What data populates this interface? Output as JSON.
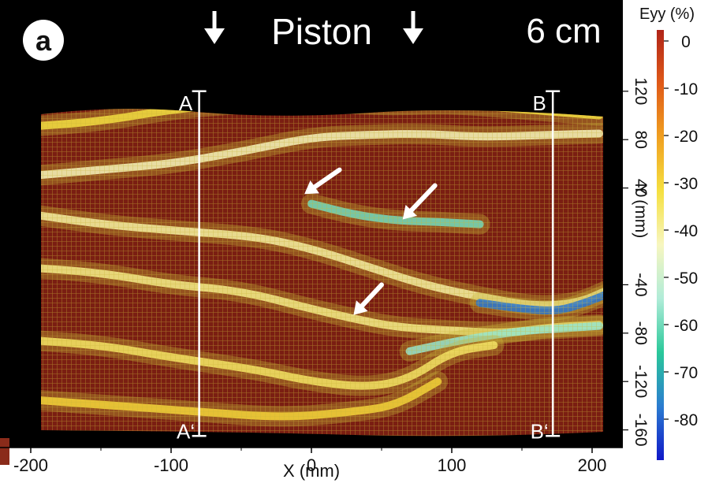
{
  "chart_data": {
    "type": "heatmap",
    "panel_label": "a",
    "header": {
      "piston_label": "Piston",
      "displacement_label": "6 cm"
    },
    "xlabel": "X (mm)",
    "ylabel": "Y (mm)",
    "xlim": [
      -210,
      210
    ],
    "ylim": [
      -170,
      135
    ],
    "x_ticks": [
      "-200",
      "-100",
      "0",
      "100",
      "200"
    ],
    "y_ticks": [
      "120",
      "80",
      "40",
      "-40",
      "-80",
      "-120",
      "-160"
    ],
    "colorbar": {
      "title": "Eyy (%)",
      "min": -85,
      "max": 0,
      "ticks": [
        "0",
        "-10",
        "-20",
        "-30",
        "-40",
        "-50",
        "-60",
        "-70",
        "-80"
      ],
      "colors": [
        "#b02418",
        "#e05a18",
        "#f0a020",
        "#f5e040",
        "#f7f6c0",
        "#b0ecd8",
        "#2ac89a",
        "#2b7cd0",
        "#1018c8"
      ]
    },
    "profiles": [
      {
        "start_label": "A",
        "end_label": "A‘",
        "x": -80,
        "y_top": 120,
        "y_bottom": -165
      },
      {
        "start_label": "B",
        "end_label": "B‘",
        "x": 172,
        "y_top": 120,
        "y_bottom": -165
      }
    ],
    "shear_bands": [
      {
        "strain": -42,
        "points": [
          [
            -200,
            50
          ],
          [
            -150,
            55
          ],
          [
            -100,
            60
          ],
          [
            -50,
            70
          ],
          [
            0,
            82
          ],
          [
            40,
            84
          ],
          [
            80,
            85
          ],
          [
            120,
            82
          ],
          [
            170,
            84
          ],
          [
            205,
            85
          ]
        ]
      },
      {
        "strain": -58,
        "points": [
          [
            0,
            27
          ],
          [
            30,
            18
          ],
          [
            60,
            13
          ],
          [
            90,
            12
          ],
          [
            120,
            10
          ]
        ]
      },
      {
        "strain": -40,
        "points": [
          [
            -210,
            20
          ],
          [
            -150,
            10
          ],
          [
            -100,
            5
          ],
          [
            -40,
            0
          ],
          [
            0,
            -10
          ],
          [
            40,
            -25
          ],
          [
            80,
            -40
          ],
          [
            120,
            -50
          ],
          [
            160,
            -58
          ],
          [
            190,
            -55
          ],
          [
            210,
            -45
          ]
        ]
      },
      {
        "strain": -75,
        "points": [
          [
            120,
            -55
          ],
          [
            150,
            -60
          ],
          [
            175,
            -62
          ],
          [
            195,
            -55
          ],
          [
            210,
            -48
          ]
        ]
      },
      {
        "strain": -38,
        "points": [
          [
            -210,
            -25
          ],
          [
            -150,
            -30
          ],
          [
            -100,
            -40
          ],
          [
            -50,
            -45
          ],
          [
            0,
            -60
          ],
          [
            30,
            -68
          ],
          [
            60,
            -75
          ],
          [
            100,
            -78
          ],
          [
            140,
            -80
          ],
          [
            170,
            -75
          ],
          [
            205,
            -73
          ]
        ]
      },
      {
        "strain": -55,
        "points": [
          [
            70,
            -95
          ],
          [
            110,
            -85
          ],
          [
            150,
            -78
          ],
          [
            180,
            -76
          ],
          [
            205,
            -74
          ]
        ]
      },
      {
        "strain": -35,
        "points": [
          [
            -210,
            -85
          ],
          [
            -150,
            -90
          ],
          [
            -100,
            -100
          ],
          [
            -40,
            -110
          ],
          [
            0,
            -120
          ],
          [
            40,
            -125
          ],
          [
            70,
            -118
          ],
          [
            100,
            -95
          ],
          [
            130,
            -90
          ]
        ]
      },
      {
        "strain": -30,
        "points": [
          [
            -200,
            -135
          ],
          [
            -140,
            -140
          ],
          [
            -80,
            -145
          ],
          [
            -20,
            -150
          ],
          [
            30,
            -145
          ],
          [
            60,
            -140
          ],
          [
            90,
            -120
          ]
        ]
      },
      {
        "strain": -32,
        "points": [
          [
            -210,
            90
          ],
          [
            -150,
            95
          ],
          [
            -100,
            105
          ],
          [
            -50,
            110
          ],
          [
            0,
            112
          ],
          [
            50,
            108
          ],
          [
            100,
            110
          ],
          [
            150,
            105
          ],
          [
            205,
            100
          ]
        ]
      }
    ],
    "top_band": {
      "strain": -60,
      "points": [
        [
          -50,
          132
        ],
        [
          0,
          130
        ],
        [
          50,
          130
        ],
        [
          100,
          130
        ],
        [
          150,
          129
        ],
        [
          205,
          128
        ]
      ]
    },
    "arrows": [
      {
        "tip": [
          -5,
          35
        ],
        "tail": [
          20,
          55
        ]
      },
      {
        "tip": [
          65,
          14
        ],
        "tail": [
          88,
          42
        ]
      },
      {
        "tip": [
          30,
          -65
        ],
        "tail": [
          50,
          -40
        ]
      }
    ]
  }
}
